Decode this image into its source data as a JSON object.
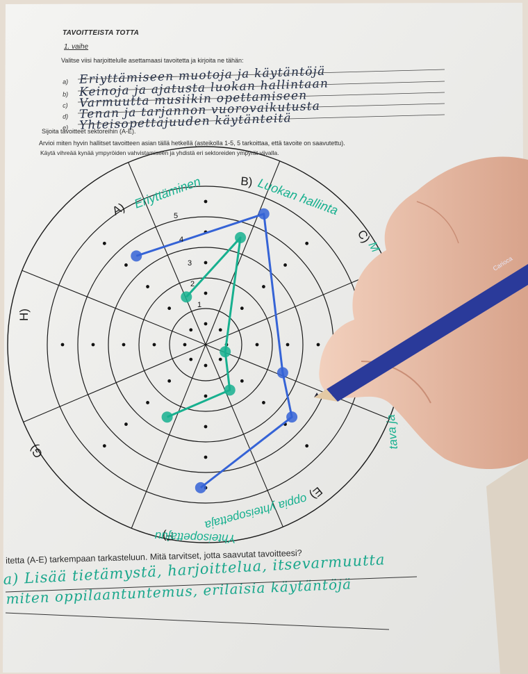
{
  "worksheet": {
    "title": "TAVOITTEISTA TOTTA",
    "phase": "1. vaihe",
    "instruction": "Valitse viisi harjoittelulle asettamaasi tavoitetta ja kirjoita ne tähän:",
    "goals": [
      {
        "letter": "a)",
        "text": "Eriyttämiseen muotoja ja käytäntöjä"
      },
      {
        "letter": "b)",
        "text": "Keinoja ja ajatusta luokan hallintaan"
      },
      {
        "letter": "c)",
        "text": "Varmuutta musiikin opettamiseen"
      },
      {
        "letter": "d)",
        "text": "Tenan ja tarjannon vuorovaikutusta"
      },
      {
        "letter": "e)",
        "text": "Yhteisopettajuuden käytänteitä"
      }
    ],
    "place_instruction": "Sijoita tavoitteet sektoreihin (A-E).",
    "assess_instruction_1": "Arvioi miten hyvin hallitset tavoitteen asian tällä hetkellä (asteikolla 1-5, 5 tarkoittaa, että tavoite on saavutettu).",
    "assess_instruction_2": "Käytä vihreää kynää ympyröiden vahvistamiseen ja yhdistä eri sektoreiden ympyrät viivalla.",
    "bottom_question": "itetta (A-E) tarkempaan tarkasteluun. Mitä tarvitset, jotta saavutat tavoitteesi?",
    "bottom_answer_1": "a) Lisää tietämystä, harjoittelua, itsevarmuutta",
    "bottom_answer_2": "miten oppilaantuntemus, erilaisia käytäntöjä"
  },
  "wheel": {
    "sectors": [
      {
        "label": "A)",
        "handwritten": "Eriyttäminen"
      },
      {
        "label": "B)",
        "handwritten": "Luokan hallinta"
      },
      {
        "label": "C)",
        "handwritten": "M"
      },
      {
        "label": "E)",
        "handwritten": "oppia yhteisopettaja"
      },
      {
        "label": "F)",
        "handwritten": ""
      },
      {
        "label": "G)",
        "handwritten": ""
      },
      {
        "label": "H)",
        "handwritten": ""
      }
    ],
    "scale_labels": [
      "1",
      "2",
      "3",
      "4",
      "5"
    ],
    "sector_D_handwritten": "tava ja",
    "green_scores": [
      2,
      4,
      1,
      2,
      3
    ],
    "blue_scores": [
      4,
      5,
      3,
      4,
      5
    ],
    "colors": {
      "green": "#17b08f",
      "blue": "#3563d6",
      "ink": "#1a1a1a"
    }
  }
}
